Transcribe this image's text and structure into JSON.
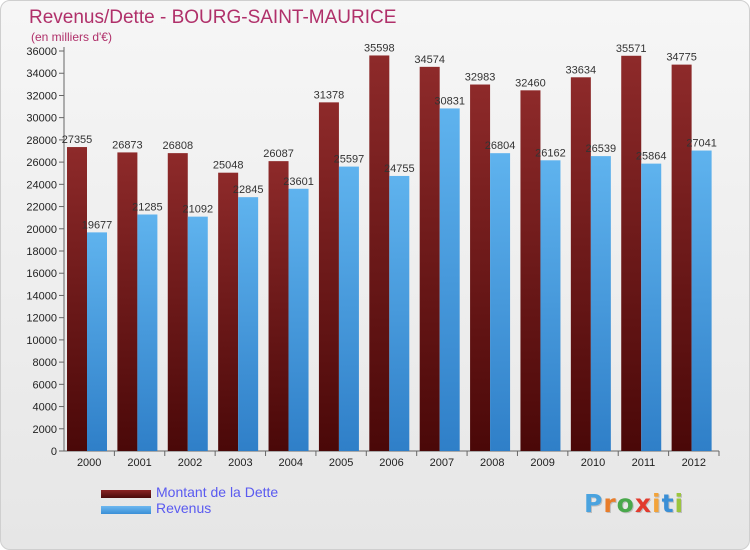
{
  "header": {
    "title": "Revenus/Dette - BOURG-SAINT-MAURICE",
    "subtitle": "(en milliers d'€)"
  },
  "logo": {
    "text": "Proxiti",
    "colors": [
      "#4aa3df",
      "#e87d2a",
      "#49a84b",
      "#e23b2e",
      "#f2a33a",
      "#3a8fd6",
      "#9bc53d"
    ]
  },
  "colors": {
    "dette": "#7a1a1a",
    "revenus": "#4ea3e6",
    "title": "#b0306a"
  },
  "chart_data": {
    "type": "bar",
    "title": "Revenus/Dette - BOURG-SAINT-MAURICE",
    "subtitle": "(en milliers d'€)",
    "categories": [
      "2000",
      "2001",
      "2002",
      "2003",
      "2004",
      "2005",
      "2006",
      "2007",
      "2008",
      "2009",
      "2010",
      "2011",
      "2012"
    ],
    "series": [
      {
        "name": "Montant de la Dette",
        "values": [
          27355,
          26873,
          26808,
          25048,
          26087,
          31378,
          35598,
          34574,
          32983,
          32460,
          33634,
          35571,
          34775
        ]
      },
      {
        "name": "Revenus",
        "values": [
          19677,
          21285,
          21092,
          22845,
          23601,
          25597,
          24755,
          30831,
          26804,
          26162,
          26539,
          25864,
          27041
        ]
      }
    ],
    "ylim": [
      0,
      36000
    ],
    "ytick_step": 2000,
    "grid": false,
    "legend": "bottom-left"
  }
}
